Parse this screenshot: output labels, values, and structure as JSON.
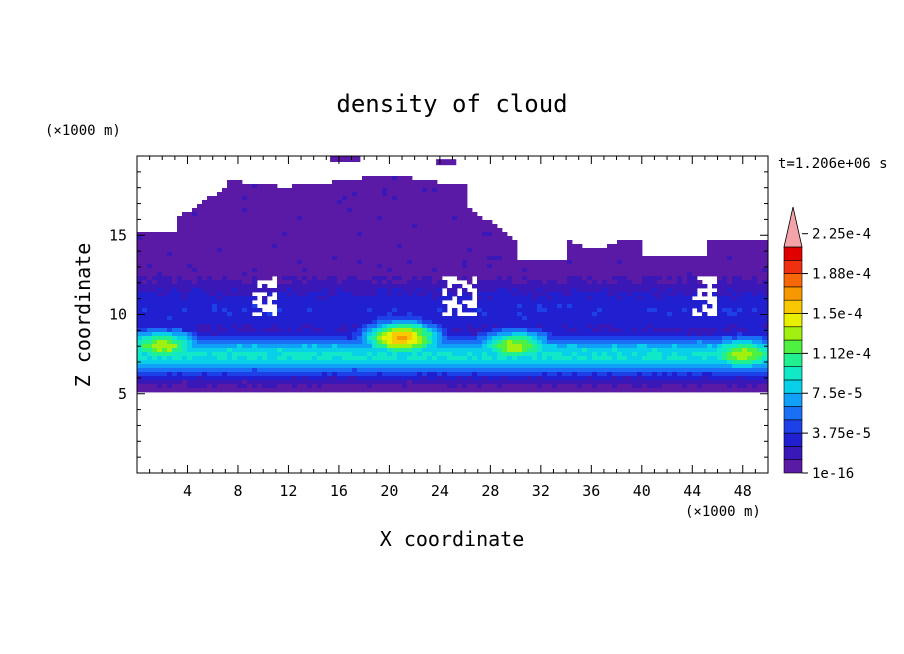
{
  "chart_data": {
    "type": "heatmap",
    "title": "density of cloud",
    "xlabel": "X coordinate",
    "ylabel": "Z coordinate",
    "x_unit": "(×1000 m)",
    "y_unit": "(×1000 m)",
    "time_label": "t=1.206e+06 s",
    "xlim": [
      0,
      50
    ],
    "ylim": [
      0,
      20
    ],
    "x_ticks": [
      4,
      8,
      12,
      16,
      20,
      24,
      28,
      32,
      36,
      40,
      44,
      48
    ],
    "y_ticks": [
      5,
      10,
      15
    ],
    "colorbar": {
      "labels": [
        "1e-16",
        "3.75e-5",
        "7.5e-5",
        "1.12e-4",
        "1.5e-4",
        "1.88e-4",
        "2.25e-4"
      ],
      "colors": [
        "#5a1aa6",
        "#3a18b8",
        "#2020d0",
        "#1e40e8",
        "#1a70f5",
        "#10a0f8",
        "#08d0e8",
        "#10e8c8",
        "#20f090",
        "#50f040",
        "#a0f010",
        "#e8f000",
        "#f8c800",
        "#f89800",
        "#f86808",
        "#f03010",
        "#e00000",
        "#f4a3a8"
      ]
    },
    "cloud_layer": {
      "base_km": 5,
      "top_km": [
        15,
        18.2,
        19.6,
        14.3,
        15.0
      ],
      "peak_core": [
        {
          "x": 2,
          "z": 8,
          "level": "1.5e-4"
        },
        {
          "x": 21,
          "z": 8.5,
          "level": "1.88e-4"
        },
        {
          "x": 30,
          "z": 8,
          "level": "1.5e-4"
        },
        {
          "x": 48,
          "z": 7.5,
          "level": "1.5e-4"
        }
      ]
    }
  }
}
